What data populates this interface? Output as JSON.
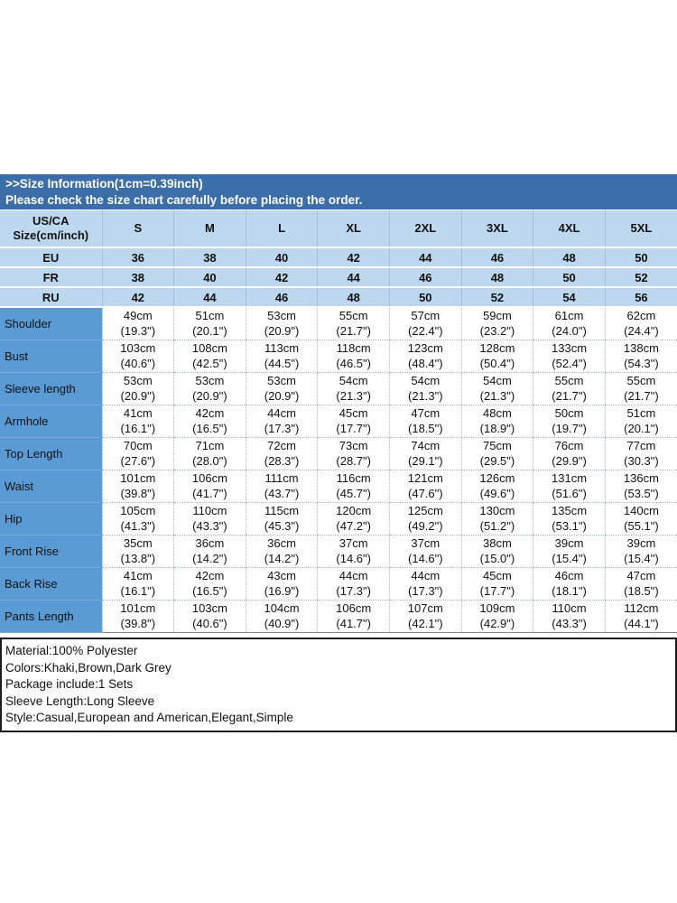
{
  "banner": {
    "title": ">>Size Information(1cm=0.39inch)",
    "subtitle": "Please check the size chart carefully before placing the order."
  },
  "colors": {
    "banner_bg": "#3b6da8",
    "light_blue_row": "#bdd7ee",
    "label_column": "#5b9bd5",
    "text": "#111111"
  },
  "table": {
    "corner_header_line1": "US/CA",
    "corner_header_line2": "Size(cm/inch)",
    "size_columns": [
      "S",
      "M",
      "L",
      "XL",
      "2XL",
      "3XL",
      "4XL",
      "5XL"
    ],
    "region_rows": [
      {
        "label": "EU",
        "values": [
          "36",
          "38",
          "40",
          "42",
          "44",
          "46",
          "48",
          "50"
        ]
      },
      {
        "label": "FR",
        "values": [
          "38",
          "40",
          "42",
          "44",
          "46",
          "48",
          "50",
          "52"
        ]
      },
      {
        "label": "RU",
        "values": [
          "42",
          "44",
          "46",
          "48",
          "50",
          "52",
          "54",
          "56"
        ]
      }
    ],
    "measurement_rows": [
      {
        "label": "Shoulder",
        "cells": [
          {
            "cm": "49cm",
            "in": "(19.3\")"
          },
          {
            "cm": "51cm",
            "in": "(20.1\")"
          },
          {
            "cm": "53cm",
            "in": "(20.9\")"
          },
          {
            "cm": "55cm",
            "in": "(21.7\")"
          },
          {
            "cm": "57cm",
            "in": "(22.4\")"
          },
          {
            "cm": "59cm",
            "in": "(23.2\")"
          },
          {
            "cm": "61cm",
            "in": "(24.0\")"
          },
          {
            "cm": "62cm",
            "in": "(24.4\")"
          }
        ]
      },
      {
        "label": "Bust",
        "cells": [
          {
            "cm": "103cm",
            "in": "(40.6\")"
          },
          {
            "cm": "108cm",
            "in": "(42.5\")"
          },
          {
            "cm": "113cm",
            "in": "(44.5\")"
          },
          {
            "cm": "118cm",
            "in": "(46.5\")"
          },
          {
            "cm": "123cm",
            "in": "(48.4\")"
          },
          {
            "cm": "128cm",
            "in": "(50.4\")"
          },
          {
            "cm": "133cm",
            "in": "(52.4\")"
          },
          {
            "cm": "138cm",
            "in": "(54.3\")"
          }
        ]
      },
      {
        "label": "Sleeve length",
        "cells": [
          {
            "cm": "53cm",
            "in": "(20.9\")"
          },
          {
            "cm": "53cm",
            "in": "(20.9\")"
          },
          {
            "cm": "53cm",
            "in": "(20.9\")"
          },
          {
            "cm": "54cm",
            "in": "(21.3\")"
          },
          {
            "cm": "54cm",
            "in": "(21.3\")"
          },
          {
            "cm": "54cm",
            "in": "(21.3\")"
          },
          {
            "cm": "55cm",
            "in": "(21.7\")"
          },
          {
            "cm": "55cm",
            "in": "(21.7\")"
          }
        ]
      },
      {
        "label": "Armhole",
        "cells": [
          {
            "cm": "41cm",
            "in": "(16.1\")"
          },
          {
            "cm": "42cm",
            "in": "(16.5\")"
          },
          {
            "cm": "44cm",
            "in": "(17.3\")"
          },
          {
            "cm": "45cm",
            "in": "(17.7\")"
          },
          {
            "cm": "47cm",
            "in": "(18.5\")"
          },
          {
            "cm": "48cm",
            "in": "(18.9\")"
          },
          {
            "cm": "50cm",
            "in": "(19.7\")"
          },
          {
            "cm": "51cm",
            "in": "(20.1\")"
          }
        ]
      },
      {
        "label": "Top Length",
        "cells": [
          {
            "cm": "70cm",
            "in": "(27.6\")"
          },
          {
            "cm": "71cm",
            "in": "(28.0\")"
          },
          {
            "cm": "72cm",
            "in": "(28.3\")"
          },
          {
            "cm": "73cm",
            "in": "(28.7\")"
          },
          {
            "cm": "74cm",
            "in": "(29.1\")"
          },
          {
            "cm": "75cm",
            "in": "(29.5\")"
          },
          {
            "cm": "76cm",
            "in": "(29.9\")"
          },
          {
            "cm": "77cm",
            "in": "(30.3\")"
          }
        ]
      },
      {
        "label": "Waist",
        "cells": [
          {
            "cm": "101cm",
            "in": "(39.8\")"
          },
          {
            "cm": "106cm",
            "in": "(41.7\")"
          },
          {
            "cm": "111cm",
            "in": "(43.7\")"
          },
          {
            "cm": "116cm",
            "in": "(45.7\")"
          },
          {
            "cm": "121cm",
            "in": "(47.6\")"
          },
          {
            "cm": "126cm",
            "in": "(49.6\")"
          },
          {
            "cm": "131cm",
            "in": "(51.6\")"
          },
          {
            "cm": "136cm",
            "in": "(53.5\")"
          }
        ]
      },
      {
        "label": "Hip",
        "cells": [
          {
            "cm": "105cm",
            "in": "(41.3\")"
          },
          {
            "cm": "110cm",
            "in": "(43.3\")"
          },
          {
            "cm": "115cm",
            "in": "(45.3\")"
          },
          {
            "cm": "120cm",
            "in": "(47.2\")"
          },
          {
            "cm": "125cm",
            "in": "(49.2\")"
          },
          {
            "cm": "130cm",
            "in": "(51.2\")"
          },
          {
            "cm": "135cm",
            "in": "(53.1\")"
          },
          {
            "cm": "140cm",
            "in": "(55.1\")"
          }
        ]
      },
      {
        "label": "Front Rise",
        "cells": [
          {
            "cm": "35cm",
            "in": "(13.8\")"
          },
          {
            "cm": "36cm",
            "in": "(14.2\")"
          },
          {
            "cm": "36cm",
            "in": "(14.2\")"
          },
          {
            "cm": "37cm",
            "in": "(14.6\")"
          },
          {
            "cm": "37cm",
            "in": "(14.6\")"
          },
          {
            "cm": "38cm",
            "in": "(15.0\")"
          },
          {
            "cm": "39cm",
            "in": "(15.4\")"
          },
          {
            "cm": "39cm",
            "in": "(15.4\")"
          }
        ]
      },
      {
        "label": "Back Rise",
        "cells": [
          {
            "cm": "41cm",
            "in": "(16.1\")"
          },
          {
            "cm": "42cm",
            "in": "(16.5\")"
          },
          {
            "cm": "43cm",
            "in": "(16.9\")"
          },
          {
            "cm": "44cm",
            "in": "(17.3\")"
          },
          {
            "cm": "44cm",
            "in": "(17.3\")"
          },
          {
            "cm": "45cm",
            "in": "(17.7\")"
          },
          {
            "cm": "46cm",
            "in": "(18.1\")"
          },
          {
            "cm": "47cm",
            "in": "(18.5\")"
          }
        ]
      },
      {
        "label": "Pants Length",
        "cells": [
          {
            "cm": "101cm",
            "in": "(39.8\")"
          },
          {
            "cm": "103cm",
            "in": "(40.6\")"
          },
          {
            "cm": "104cm",
            "in": "(40.9\")"
          },
          {
            "cm": "106cm",
            "in": "(41.7\")"
          },
          {
            "cm": "107cm",
            "in": "(42.1\")"
          },
          {
            "cm": "109cm",
            "in": "(42.9\")"
          },
          {
            "cm": "110cm",
            "in": "(43.3\")"
          },
          {
            "cm": "112cm",
            "in": "(44.1\")"
          }
        ]
      }
    ]
  },
  "info_box": {
    "lines": [
      "Material:100% Polyester",
      "Colors:Khaki,Brown,Dark Grey",
      "Package include:1 Sets",
      "Sleeve Length:Long Sleeve",
      "Style:Casual,European and American,Elegant,Simple"
    ]
  }
}
